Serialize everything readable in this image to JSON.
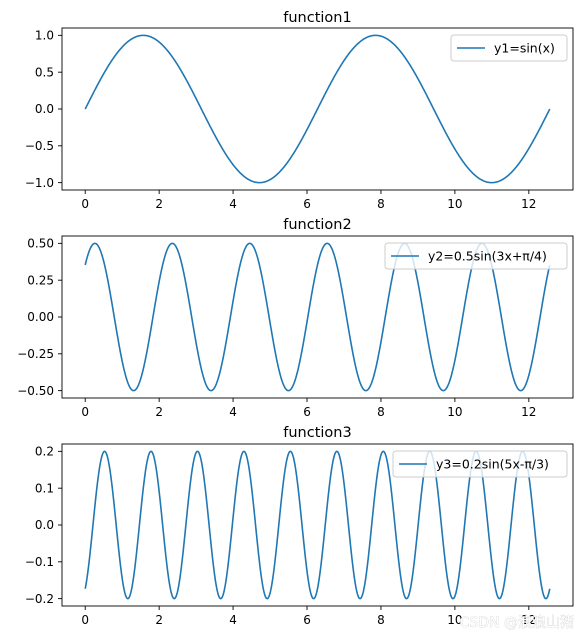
{
  "figure": {
    "background": "#ffffff"
  },
  "chart_data": [
    {
      "type": "line",
      "title": "function1",
      "xlabel": "",
      "ylabel": "",
      "xlim": [
        -0.628,
        13.195
      ],
      "ylim": [
        -1.1,
        1.1
      ],
      "x_ticks": [
        0,
        2,
        4,
        6,
        8,
        10,
        12
      ],
      "x_tick_labels": [
        "0",
        "2",
        "4",
        "6",
        "8",
        "10",
        "12"
      ],
      "y_ticks": [
        -1.0,
        -0.5,
        0.0,
        0.5,
        1.0
      ],
      "y_tick_labels": [
        "−1.0",
        "−0.5",
        "0.0",
        "0.5",
        "1.0"
      ],
      "legend": "top-right",
      "grid": false,
      "series": [
        {
          "name": "y1=sin(x)",
          "color": "#1f77b4",
          "function": "sin(x)",
          "x_range": [
            0,
            12.566
          ],
          "x": [
            0,
            0.785,
            1.571,
            2.356,
            3.142,
            3.927,
            4.712,
            5.498,
            6.283,
            7.069,
            7.854,
            8.639,
            9.425,
            10.21,
            10.996,
            11.781,
            12.566
          ],
          "y": [
            0,
            0.707,
            1.0,
            0.707,
            0,
            -0.707,
            -1.0,
            -0.707,
            0,
            0.707,
            1.0,
            0.707,
            0,
            -0.707,
            -1.0,
            -0.707,
            0
          ]
        }
      ]
    },
    {
      "type": "line",
      "title": "function2",
      "xlabel": "",
      "ylabel": "",
      "xlim": [
        -0.628,
        13.195
      ],
      "ylim": [
        -0.55,
        0.55
      ],
      "x_ticks": [
        0,
        2,
        4,
        6,
        8,
        10,
        12
      ],
      "x_tick_labels": [
        "0",
        "2",
        "4",
        "6",
        "8",
        "10",
        "12"
      ],
      "y_ticks": [
        -0.5,
        -0.25,
        0.0,
        0.25,
        0.5
      ],
      "y_tick_labels": [
        "−0.50",
        "−0.25",
        "0.00",
        "0.25",
        "0.50"
      ],
      "legend": "top-right",
      "grid": false,
      "series": [
        {
          "name": "y2=0.5sin(3x+π/4)",
          "color": "#1f77b4",
          "function": "0.5*sin(3*x+pi/4)",
          "x_range": [
            0,
            12.566
          ],
          "x": [
            0,
            0.262,
            0.785,
            1.309,
            1.833,
            2.356,
            2.88,
            3.403,
            3.927,
            4.451,
            4.974,
            5.498,
            6.021,
            6.545,
            7.069,
            7.592,
            8.116,
            8.639,
            9.163,
            9.687,
            10.21,
            10.734,
            11.257,
            11.781,
            12.305,
            12.566
          ],
          "y": [
            0.354,
            0.5,
            0,
            -0.5,
            0,
            0.5,
            0,
            -0.5,
            0,
            0.5,
            0,
            -0.5,
            0,
            0.5,
            0,
            -0.5,
            0,
            0.5,
            0,
            -0.5,
            0,
            0.5,
            0,
            -0.5,
            0,
            0.354
          ]
        }
      ]
    },
    {
      "type": "line",
      "title": "function3",
      "xlabel": "",
      "ylabel": "",
      "xlim": [
        -0.628,
        13.195
      ],
      "ylim": [
        -0.22,
        0.22
      ],
      "x_ticks": [
        0,
        2,
        4,
        6,
        8,
        10,
        12
      ],
      "x_tick_labels": [
        "0",
        "2",
        "4",
        "6",
        "8",
        "10",
        "12"
      ],
      "y_ticks": [
        -0.2,
        -0.1,
        0.0,
        0.1,
        0.2
      ],
      "y_tick_labels": [
        "−0.2",
        "−0.1",
        "0.0",
        "0.1",
        "0.2"
      ],
      "legend": "top-right",
      "grid": false,
      "series": [
        {
          "name": "y3=0.2sin(5x-π/3)",
          "color": "#1f77b4",
          "function": "0.2*sin(5*x-pi/3)",
          "x_range": [
            0,
            12.566
          ],
          "x": [
            0,
            0.209,
            0.524,
            0.838,
            1.152,
            1.466,
            1.78,
            2.094,
            2.409,
            2.723,
            3.037,
            3.351,
            3.665,
            3.979,
            4.294,
            4.608,
            4.922,
            5.236,
            5.55,
            5.864,
            6.178,
            6.493,
            6.807,
            7.121,
            7.435,
            7.749,
            8.063,
            8.378,
            8.692,
            9.006,
            9.32,
            9.634,
            9.948,
            10.263,
            10.577,
            10.891,
            11.205,
            11.519,
            11.833,
            12.147,
            12.462,
            12.566
          ],
          "y": [
            -0.173,
            0,
            0.2,
            0,
            -0.2,
            0,
            0.2,
            0,
            -0.2,
            0,
            0.2,
            0,
            -0.2,
            0,
            0.2,
            0,
            -0.2,
            0,
            0.2,
            0,
            -0.2,
            0,
            0.2,
            0,
            -0.2,
            0,
            0.2,
            0,
            -0.2,
            0,
            0.2,
            0,
            -0.2,
            0,
            0.2,
            0,
            -0.2,
            0,
            0.2,
            0,
            -0.2,
            -0.173
          ]
        }
      ]
    }
  ],
  "watermark": {
    "text": "CSDN @浪浪山猪"
  }
}
